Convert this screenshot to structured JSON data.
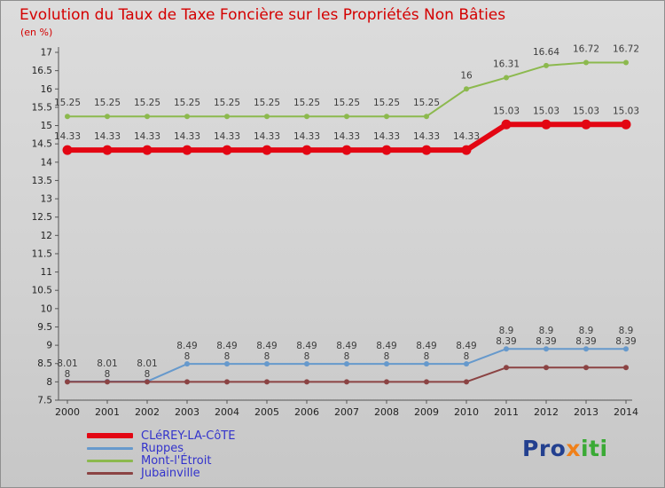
{
  "chart_data": {
    "type": "line",
    "title": "Evolution du Taux de Taxe Foncière sur les Propriétés Non Bâties",
    "subtitle": "(en %)",
    "x": [
      "2000",
      "2001",
      "2002",
      "2003",
      "2004",
      "2005",
      "2006",
      "2007",
      "2008",
      "2009",
      "2010",
      "2011",
      "2012",
      "2013",
      "2014"
    ],
    "ylim": [
      7.5,
      17
    ],
    "ytick_step": 0.5,
    "grid": false,
    "legend_position": "bottom-left",
    "series": [
      {
        "name": "CLéREY-LA-CôTE",
        "color": "#e30613",
        "line_width": 6,
        "marker_radius": 5.5,
        "label_mode": "own",
        "values": [
          14.33,
          14.33,
          14.33,
          14.33,
          14.33,
          14.33,
          14.33,
          14.33,
          14.33,
          14.33,
          14.33,
          15.03,
          15.03,
          15.03,
          15.03
        ]
      },
      {
        "name": "Ruppes",
        "color": "#6699cc",
        "line_width": 2,
        "marker_radius": 3,
        "label_mode": "stack-top",
        "values": [
          8.01,
          8.01,
          8.01,
          8.49,
          8.49,
          8.49,
          8.49,
          8.49,
          8.49,
          8.49,
          8.49,
          8.9,
          8.9,
          8.9,
          8.9
        ]
      },
      {
        "name": "Mont-l'Étroit",
        "color": "#8cb94e",
        "line_width": 2,
        "marker_radius": 3,
        "label_mode": "own",
        "values": [
          15.25,
          15.25,
          15.25,
          15.25,
          15.25,
          15.25,
          15.25,
          15.25,
          15.25,
          15.25,
          16,
          16.31,
          16.64,
          16.72,
          16.72
        ]
      },
      {
        "name": "Jubainville",
        "color": "#8b4343",
        "line_width": 2,
        "marker_radius": 3,
        "label_mode": "stack-bottom",
        "values": [
          8,
          8,
          8,
          8,
          8,
          8,
          8,
          8,
          8,
          8,
          8,
          8.39,
          8.39,
          8.39,
          8.39
        ]
      }
    ]
  },
  "axis_style": {
    "line_color": "#555555",
    "tick_text_color": "#222222",
    "data_label_color": "#3d3d3d"
  },
  "legend_text_color": "#3333cc",
  "logo": {
    "parts": [
      {
        "text": "Pro",
        "color": "#23408f"
      },
      {
        "text": "x",
        "color": "#f08019"
      },
      {
        "text": "iti",
        "color": "#3aaa35"
      }
    ]
  }
}
